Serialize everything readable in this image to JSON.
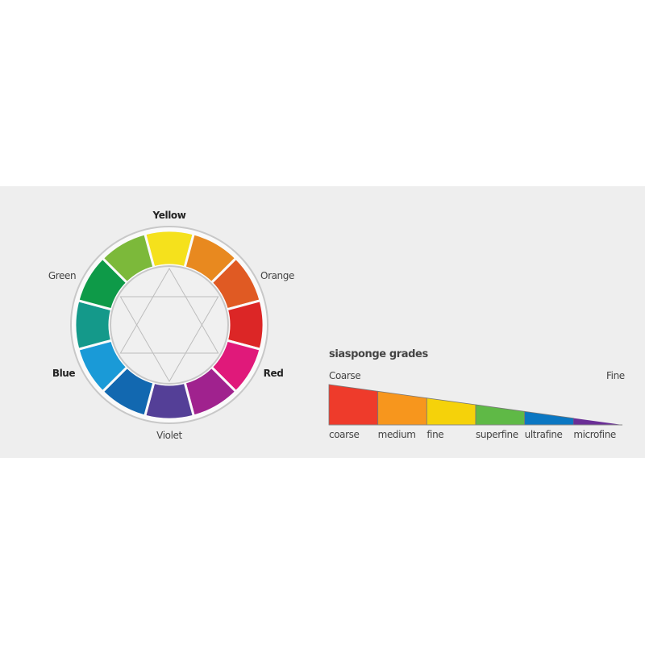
{
  "wheel": {
    "labels": {
      "yellow": "Yellow",
      "orange": "Orange",
      "red": "Red",
      "violet": "Violet",
      "blue": "Blue",
      "green": "Green"
    },
    "segment_colors": [
      "#f5e11c",
      "#e8891f",
      "#e05a23",
      "#dc2626",
      "#e0197a",
      "#a0228e",
      "#543f97",
      "#1268b0",
      "#1a9ad7",
      "#14998a",
      "#0e9a48",
      "#7cb93a"
    ]
  },
  "grades": {
    "title": "siasponge grades",
    "left_label": "Coarse",
    "right_label": "Fine",
    "items": [
      {
        "label": "coarse",
        "color": "#ee3b2b"
      },
      {
        "label": "medium",
        "color": "#f7961d"
      },
      {
        "label": "fine",
        "color": "#f5d20a"
      },
      {
        "label": "superfine",
        "color": "#5fb946"
      },
      {
        "label": "ultrafine",
        "color": "#0b77c2"
      },
      {
        "label": "microfine",
        "color": "#6a2e96"
      }
    ]
  }
}
